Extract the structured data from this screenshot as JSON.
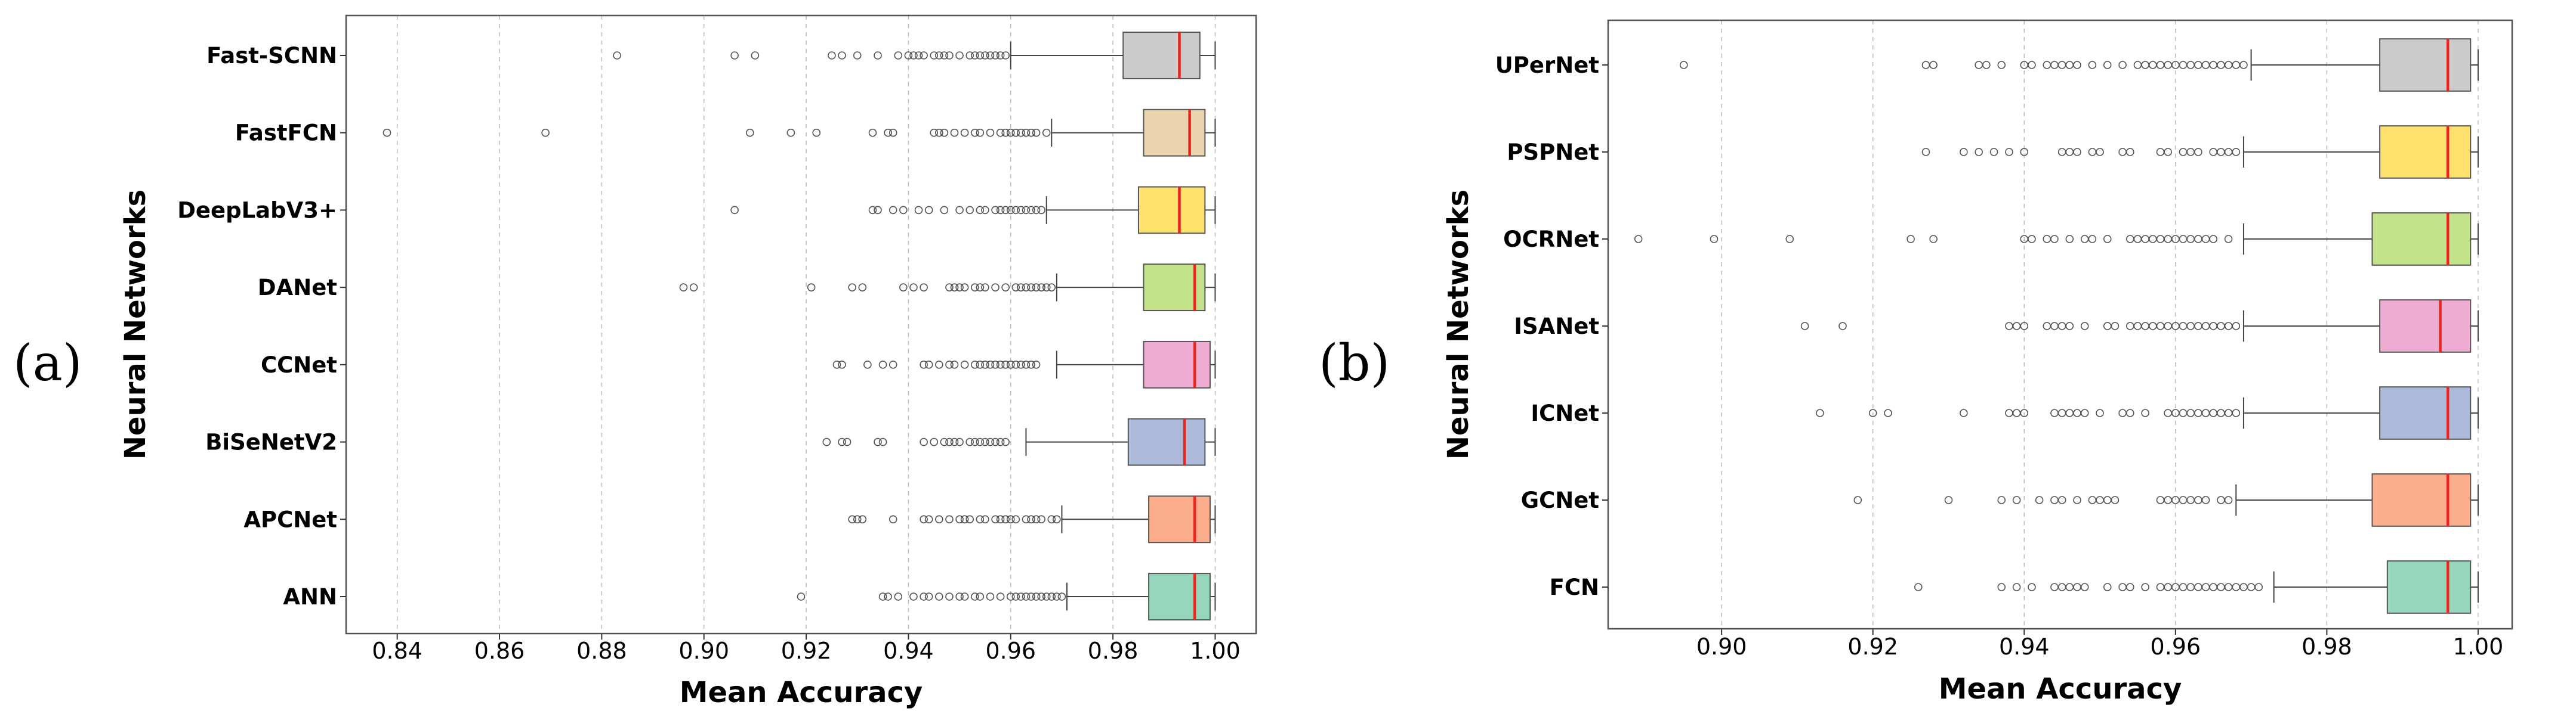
{
  "figure": {
    "panel_labels": [
      "(a)",
      "(b)"
    ]
  },
  "chart_data": [
    {
      "type": "boxplot",
      "orientation": "horizontal",
      "panel": "(a)",
      "xlabel": "Mean Accuracy",
      "ylabel": "Neural Networks",
      "xlim": [
        0.83,
        1.008
      ],
      "xticks": [
        0.84,
        0.86,
        0.88,
        0.9,
        0.92,
        0.94,
        0.96,
        0.98,
        1.0
      ],
      "xtick_labels": [
        "0.84",
        "0.86",
        "0.88",
        "0.90",
        "0.92",
        "0.94",
        "0.96",
        "0.98",
        "1.00"
      ],
      "grid": "vertical dashed",
      "series": [
        {
          "name": "Fast-SCNN",
          "color": "#cccccc",
          "whislo": 0.96,
          "q1": 0.982,
          "median": 0.993,
          "q3": 0.997,
          "whishi": 1.0,
          "fliers": [
            0.883,
            0.906,
            0.91,
            0.925,
            0.927,
            0.93,
            0.934,
            0.938,
            0.94,
            0.941,
            0.942,
            0.943,
            0.945,
            0.946,
            0.947,
            0.948,
            0.95,
            0.952,
            0.953,
            0.954,
            0.955,
            0.956,
            0.957,
            0.958,
            0.959
          ]
        },
        {
          "name": "FastFCN",
          "color": "#ecd3b0",
          "whislo": 0.968,
          "q1": 0.986,
          "median": 0.995,
          "q3": 0.998,
          "whishi": 1.0,
          "fliers": [
            0.838,
            0.869,
            0.909,
            0.917,
            0.922,
            0.933,
            0.936,
            0.937,
            0.945,
            0.946,
            0.947,
            0.949,
            0.951,
            0.953,
            0.954,
            0.956,
            0.958,
            0.959,
            0.96,
            0.961,
            0.962,
            0.963,
            0.964,
            0.965,
            0.967
          ]
        },
        {
          "name": "DeepLabV3+",
          "color": "#ffe26e",
          "whislo": 0.967,
          "q1": 0.985,
          "median": 0.993,
          "q3": 0.998,
          "whishi": 1.0,
          "fliers": [
            0.906,
            0.933,
            0.934,
            0.937,
            0.939,
            0.942,
            0.944,
            0.947,
            0.95,
            0.952,
            0.954,
            0.955,
            0.957,
            0.958,
            0.959,
            0.96,
            0.961,
            0.962,
            0.963,
            0.964,
            0.965,
            0.966
          ]
        },
        {
          "name": "DANet",
          "color": "#c3e38a",
          "whislo": 0.969,
          "q1": 0.986,
          "median": 0.996,
          "q3": 0.998,
          "whishi": 1.0,
          "fliers": [
            0.896,
            0.898,
            0.921,
            0.929,
            0.931,
            0.939,
            0.941,
            0.943,
            0.948,
            0.949,
            0.95,
            0.951,
            0.953,
            0.954,
            0.955,
            0.957,
            0.959,
            0.961,
            0.962,
            0.963,
            0.964,
            0.965,
            0.966,
            0.967,
            0.968
          ]
        },
        {
          "name": "CCNet",
          "color": "#efadd4",
          "whislo": 0.969,
          "q1": 0.986,
          "median": 0.996,
          "q3": 0.999,
          "whishi": 1.0,
          "fliers": [
            0.926,
            0.927,
            0.932,
            0.935,
            0.937,
            0.943,
            0.944,
            0.946,
            0.948,
            0.949,
            0.951,
            0.953,
            0.954,
            0.955,
            0.956,
            0.957,
            0.958,
            0.959,
            0.96,
            0.961,
            0.962,
            0.963,
            0.964,
            0.965
          ]
        },
        {
          "name": "BiSeNetV2",
          "color": "#adbad9",
          "whislo": 0.963,
          "q1": 0.983,
          "median": 0.994,
          "q3": 0.998,
          "whishi": 1.0,
          "fliers": [
            0.924,
            0.927,
            0.928,
            0.934,
            0.935,
            0.943,
            0.945,
            0.947,
            0.948,
            0.949,
            0.95,
            0.952,
            0.953,
            0.954,
            0.955,
            0.956,
            0.957,
            0.958,
            0.959
          ]
        },
        {
          "name": "APCNet",
          "color": "#fcad8b",
          "whislo": 0.97,
          "q1": 0.987,
          "median": 0.996,
          "q3": 0.999,
          "whishi": 1.0,
          "fliers": [
            0.929,
            0.93,
            0.931,
            0.937,
            0.943,
            0.944,
            0.946,
            0.948,
            0.95,
            0.951,
            0.952,
            0.954,
            0.955,
            0.957,
            0.958,
            0.959,
            0.96,
            0.961,
            0.963,
            0.964,
            0.965,
            0.966,
            0.968,
            0.969
          ]
        },
        {
          "name": "ANN",
          "color": "#95d6bd",
          "whislo": 0.971,
          "q1": 0.987,
          "median": 0.996,
          "q3": 0.999,
          "whishi": 1.0,
          "fliers": [
            0.919,
            0.935,
            0.936,
            0.938,
            0.941,
            0.943,
            0.944,
            0.946,
            0.948,
            0.95,
            0.951,
            0.953,
            0.954,
            0.956,
            0.958,
            0.96,
            0.961,
            0.962,
            0.963,
            0.964,
            0.965,
            0.966,
            0.967,
            0.968,
            0.969,
            0.97
          ]
        }
      ]
    },
    {
      "type": "boxplot",
      "orientation": "horizontal",
      "panel": "(b)",
      "xlabel": "Mean Accuracy",
      "ylabel": "Neural Networks",
      "xlim": [
        0.885,
        1.0045
      ],
      "xticks": [
        0.9,
        0.92,
        0.94,
        0.96,
        0.98,
        1.0
      ],
      "xtick_labels": [
        "0.90",
        "0.92",
        "0.94",
        "0.96",
        "0.98",
        "1.00"
      ],
      "grid": "vertical dashed",
      "series": [
        {
          "name": "UPerNet",
          "color": "#cccccc",
          "whislo": 0.97,
          "q1": 0.987,
          "median": 0.996,
          "q3": 0.999,
          "whishi": 1.0,
          "fliers": [
            0.895,
            0.927,
            0.928,
            0.934,
            0.935,
            0.937,
            0.94,
            0.941,
            0.943,
            0.944,
            0.945,
            0.946,
            0.947,
            0.949,
            0.951,
            0.953,
            0.955,
            0.956,
            0.957,
            0.958,
            0.959,
            0.96,
            0.961,
            0.962,
            0.963,
            0.964,
            0.965,
            0.966,
            0.967,
            0.968,
            0.969
          ]
        },
        {
          "name": "PSPNet",
          "color": "#ffe26e",
          "whislo": 0.969,
          "q1": 0.987,
          "median": 0.996,
          "q3": 0.999,
          "whishi": 1.0,
          "fliers": [
            0.927,
            0.932,
            0.934,
            0.936,
            0.938,
            0.94,
            0.945,
            0.946,
            0.947,
            0.949,
            0.95,
            0.953,
            0.954,
            0.958,
            0.959,
            0.961,
            0.962,
            0.963,
            0.965,
            0.966,
            0.967,
            0.968
          ]
        },
        {
          "name": "OCRNet",
          "color": "#c3e38a",
          "whislo": 0.969,
          "q1": 0.986,
          "median": 0.996,
          "q3": 0.999,
          "whishi": 1.0,
          "fliers": [
            0.889,
            0.899,
            0.909,
            0.925,
            0.928,
            0.94,
            0.941,
            0.943,
            0.944,
            0.946,
            0.948,
            0.949,
            0.951,
            0.954,
            0.955,
            0.956,
            0.957,
            0.958,
            0.959,
            0.96,
            0.961,
            0.962,
            0.963,
            0.964,
            0.965,
            0.967
          ]
        },
        {
          "name": "ISANet",
          "color": "#efadd4",
          "whislo": 0.969,
          "q1": 0.987,
          "median": 0.995,
          "q3": 0.999,
          "whishi": 1.0,
          "fliers": [
            0.911,
            0.916,
            0.938,
            0.939,
            0.94,
            0.943,
            0.944,
            0.945,
            0.946,
            0.948,
            0.951,
            0.952,
            0.954,
            0.955,
            0.956,
            0.957,
            0.958,
            0.959,
            0.96,
            0.961,
            0.962,
            0.963,
            0.964,
            0.965,
            0.966,
            0.967,
            0.968
          ]
        },
        {
          "name": "ICNet",
          "color": "#adbad9",
          "whislo": 0.969,
          "q1": 0.987,
          "median": 0.996,
          "q3": 0.999,
          "whishi": 1.0,
          "fliers": [
            0.913,
            0.92,
            0.922,
            0.932,
            0.938,
            0.939,
            0.94,
            0.944,
            0.945,
            0.946,
            0.947,
            0.948,
            0.95,
            0.953,
            0.954,
            0.956,
            0.959,
            0.96,
            0.961,
            0.962,
            0.963,
            0.964,
            0.965,
            0.966,
            0.967,
            0.968
          ]
        },
        {
          "name": "GCNet",
          "color": "#fcad8b",
          "whislo": 0.968,
          "q1": 0.986,
          "median": 0.996,
          "q3": 0.999,
          "whishi": 1.0,
          "fliers": [
            0.918,
            0.93,
            0.937,
            0.939,
            0.942,
            0.944,
            0.945,
            0.947,
            0.949,
            0.95,
            0.951,
            0.952,
            0.958,
            0.959,
            0.96,
            0.961,
            0.962,
            0.963,
            0.964,
            0.966,
            0.967
          ]
        },
        {
          "name": "FCN",
          "color": "#95d6bd",
          "whislo": 0.973,
          "q1": 0.988,
          "median": 0.996,
          "q3": 0.999,
          "whishi": 1.0,
          "fliers": [
            0.926,
            0.937,
            0.939,
            0.941,
            0.944,
            0.945,
            0.946,
            0.947,
            0.948,
            0.951,
            0.953,
            0.954,
            0.956,
            0.958,
            0.959,
            0.96,
            0.961,
            0.962,
            0.963,
            0.964,
            0.965,
            0.966,
            0.967,
            0.968,
            0.969,
            0.97,
            0.971
          ]
        }
      ]
    }
  ]
}
